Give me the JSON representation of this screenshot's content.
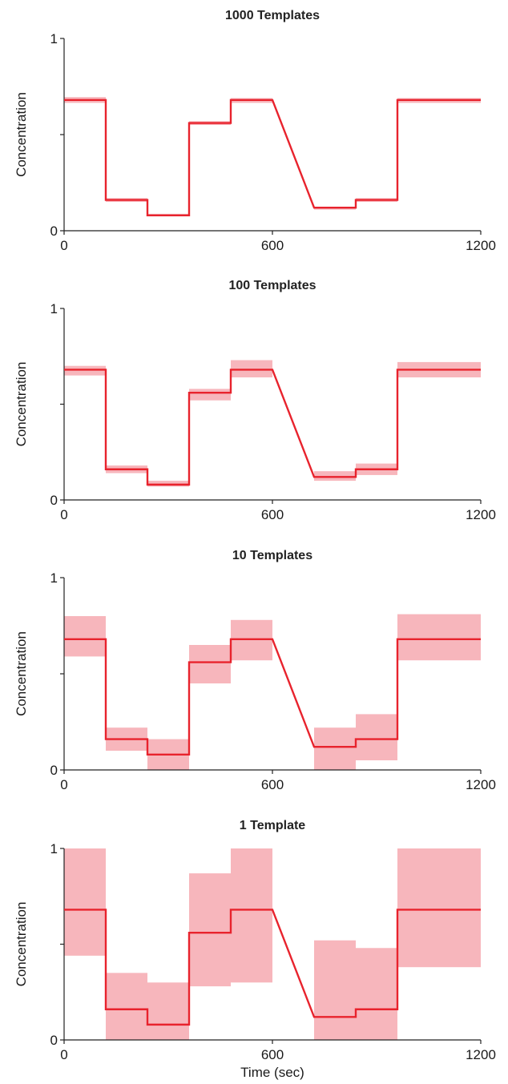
{
  "colors": {
    "line": "#e8232d",
    "band": "#f7b6bc",
    "axis": "#222222"
  },
  "chart_data": [
    {
      "type": "line",
      "title": "1000 Templates",
      "ylabel": "Concentration",
      "xlabel": "",
      "xlim": [
        0,
        1200
      ],
      "ylim": [
        0,
        1
      ],
      "xticks": [
        "0",
        "600",
        "1200"
      ],
      "yticks": [
        "0",
        "1"
      ],
      "step_edges": [
        0,
        120,
        240,
        360,
        480,
        600,
        720,
        840,
        960,
        1080,
        1200
      ],
      "series": [
        {
          "values": [
            0.68,
            0.16,
            0.08,
            0.56,
            0.68,
            0.12,
            0.16,
            0.68
          ],
          "bins": [
            [
              0,
              120
            ],
            [
              120,
              240
            ],
            [
              240,
              360
            ],
            [
              360,
              480
            ],
            [
              480,
              600
            ],
            [
              720,
              840
            ],
            [
              840,
              960
            ],
            [
              960,
              1200
            ]
          ]
        }
      ],
      "bands": [
        [
          0.665,
          0.695
        ],
        [
          0.15,
          0.17
        ],
        [
          0.075,
          0.088
        ],
        [
          0.55,
          0.57
        ],
        [
          0.665,
          0.69
        ],
        [
          0.11,
          0.125
        ],
        [
          0.15,
          0.17
        ],
        [
          0.665,
          0.69
        ]
      ]
    },
    {
      "type": "line",
      "title": "100 Templates",
      "ylabel": "Concentration",
      "xlabel": "",
      "xlim": [
        0,
        1200
      ],
      "ylim": [
        0,
        1
      ],
      "xticks": [
        "0",
        "600",
        "1200"
      ],
      "yticks": [
        "0",
        "1"
      ],
      "series": [
        {
          "values": [
            0.68,
            0.16,
            0.08,
            0.56,
            0.68,
            0.12,
            0.16,
            0.68
          ],
          "bins": [
            [
              0,
              120
            ],
            [
              120,
              240
            ],
            [
              240,
              360
            ],
            [
              360,
              480
            ],
            [
              480,
              600
            ],
            [
              720,
              840
            ],
            [
              840,
              960
            ],
            [
              960,
              1200
            ]
          ]
        }
      ],
      "bands": [
        [
          0.65,
          0.7
        ],
        [
          0.14,
          0.18
        ],
        [
          0.07,
          0.1
        ],
        [
          0.52,
          0.58
        ],
        [
          0.64,
          0.73
        ],
        [
          0.1,
          0.15
        ],
        [
          0.13,
          0.19
        ],
        [
          0.64,
          0.72
        ]
      ]
    },
    {
      "type": "line",
      "title": "10 Templates",
      "ylabel": "Concentration",
      "xlabel": "",
      "xlim": [
        0,
        1200
      ],
      "ylim": [
        0,
        1
      ],
      "xticks": [
        "0",
        "600",
        "1200"
      ],
      "yticks": [
        "0",
        "1"
      ],
      "series": [
        {
          "values": [
            0.68,
            0.16,
            0.08,
            0.56,
            0.68,
            0.12,
            0.16,
            0.68
          ],
          "bins": [
            [
              0,
              120
            ],
            [
              120,
              240
            ],
            [
              240,
              360
            ],
            [
              360,
              480
            ],
            [
              480,
              600
            ],
            [
              720,
              840
            ],
            [
              840,
              960
            ],
            [
              960,
              1200
            ]
          ]
        }
      ],
      "bands": [
        [
          0.59,
          0.8
        ],
        [
          0.1,
          0.22
        ],
        [
          0.0,
          0.16
        ],
        [
          0.45,
          0.65
        ],
        [
          0.57,
          0.78
        ],
        [
          0.0,
          0.22
        ],
        [
          0.05,
          0.29
        ],
        [
          0.57,
          0.81
        ]
      ]
    },
    {
      "type": "line",
      "title": "1 Template",
      "ylabel": "Concentration",
      "xlabel": "Time (sec)",
      "xlim": [
        0,
        1200
      ],
      "ylim": [
        0,
        1
      ],
      "xticks": [
        "0",
        "600",
        "1200"
      ],
      "yticks": [
        "0",
        "1"
      ],
      "series": [
        {
          "values": [
            0.68,
            0.16,
            0.08,
            0.56,
            0.68,
            0.12,
            0.16,
            0.68
          ],
          "bins": [
            [
              0,
              120
            ],
            [
              120,
              240
            ],
            [
              240,
              360
            ],
            [
              360,
              480
            ],
            [
              480,
              600
            ],
            [
              720,
              840
            ],
            [
              840,
              960
            ],
            [
              960,
              1200
            ]
          ]
        }
      ],
      "bands": [
        [
          0.44,
          1.0
        ],
        [
          0.0,
          0.35
        ],
        [
          0.0,
          0.3
        ],
        [
          0.28,
          0.87
        ],
        [
          0.3,
          1.0
        ],
        [
          0.0,
          0.52
        ],
        [
          0.0,
          0.48
        ],
        [
          0.38,
          1.0
        ]
      ]
    }
  ]
}
